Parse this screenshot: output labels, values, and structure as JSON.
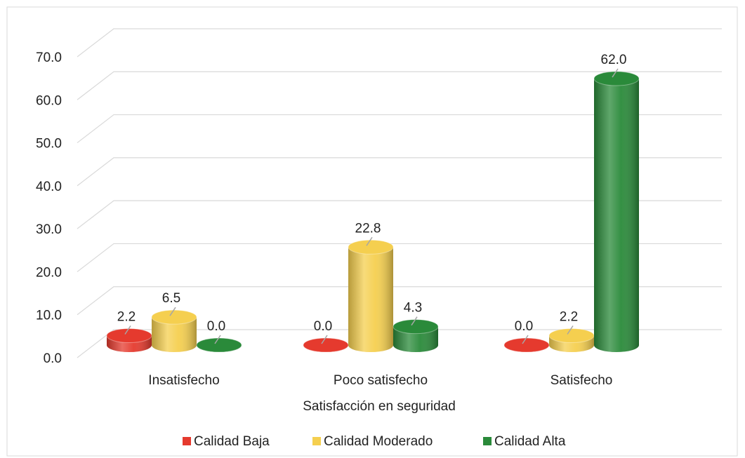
{
  "chart_data": {
    "type": "bar3d",
    "x_label": "Satisfacción en seguridad",
    "categories": [
      "Insatisfecho",
      "Poco satisfecho",
      "Satisfecho"
    ],
    "series": [
      {
        "name": "Calidad Baja",
        "color": "#e53a2e",
        "values": [
          2.2,
          0.0,
          0.0
        ],
        "value_labels": [
          "2.2",
          "0.0",
          "0.0"
        ]
      },
      {
        "name": "Calidad Moderado",
        "color": "#f5cf4f",
        "values": [
          6.5,
          22.8,
          2.2
        ],
        "value_labels": [
          "6.5",
          "22.8",
          "2.2"
        ]
      },
      {
        "name": "Calidad Alta",
        "color": "#2a8a3a",
        "values": [
          0.0,
          4.3,
          62.0
        ],
        "value_labels": [
          "0.0",
          "4.3",
          "62.0"
        ]
      }
    ],
    "ylim": [
      0,
      70
    ],
    "yticks": [
      {
        "value": 0,
        "label": "0.0"
      },
      {
        "value": 10,
        "label": "10.0"
      },
      {
        "value": 20,
        "label": "20.0"
      },
      {
        "value": 30,
        "label": "30.0"
      },
      {
        "value": 40,
        "label": "40.0"
      },
      {
        "value": 50,
        "label": "50.0"
      },
      {
        "value": 60,
        "label": "60.0"
      },
      {
        "value": 70,
        "label": "70.0"
      }
    ],
    "grid": true,
    "legend": "bottom"
  }
}
